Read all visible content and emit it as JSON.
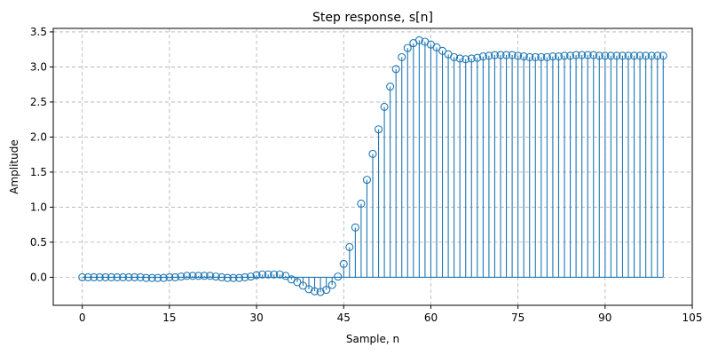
{
  "chart_data": {
    "type": "stem",
    "title": "Step response, s[n]",
    "xlabel": "Sample, n",
    "ylabel": "Amplitude",
    "xlim": [
      -5,
      105
    ],
    "ylim": [
      -0.4,
      3.55
    ],
    "xticks": [
      0,
      15,
      30,
      45,
      60,
      75,
      90,
      105
    ],
    "yticks": [
      0.0,
      0.5,
      1.0,
      1.5,
      2.0,
      2.5,
      3.0,
      3.5
    ],
    "xtick_labels": [
      "0",
      "15",
      "30",
      "45",
      "60",
      "75",
      "90",
      "105"
    ],
    "ytick_labels": [
      "0.0",
      "0.5",
      "1.0",
      "1.5",
      "2.0",
      "2.5",
      "3.0",
      "3.5"
    ],
    "grid": true,
    "grid_style": "dashed",
    "color": "#1f77b4",
    "baseline": 0,
    "x": [
      0,
      1,
      2,
      3,
      4,
      5,
      6,
      7,
      8,
      9,
      10,
      11,
      12,
      13,
      14,
      15,
      16,
      17,
      18,
      19,
      20,
      21,
      22,
      23,
      24,
      25,
      26,
      27,
      28,
      29,
      30,
      31,
      32,
      33,
      34,
      35,
      36,
      37,
      38,
      39,
      40,
      41,
      42,
      43,
      44,
      45,
      46,
      47,
      48,
      49,
      50,
      51,
      52,
      53,
      54,
      55,
      56,
      57,
      58,
      59,
      60,
      61,
      62,
      63,
      64,
      65,
      66,
      67,
      68,
      69,
      70,
      71,
      72,
      73,
      74,
      75,
      76,
      77,
      78,
      79,
      80,
      81,
      82,
      83,
      84,
      85,
      86,
      87,
      88,
      89,
      90,
      91,
      92,
      93,
      94,
      95,
      96,
      97,
      98,
      99,
      100
    ],
    "values": [
      0.0,
      0.0,
      0.0,
      0.0,
      0.0,
      0.0,
      0.0,
      0.0,
      0.0,
      0.0,
      0.0,
      -0.01,
      -0.01,
      -0.01,
      -0.01,
      0.0,
      0.0,
      0.01,
      0.02,
      0.02,
      0.02,
      0.02,
      0.02,
      0.01,
      0.0,
      -0.01,
      -0.01,
      -0.01,
      0.0,
      0.01,
      0.03,
      0.04,
      0.04,
      0.04,
      0.04,
      0.02,
      -0.03,
      -0.07,
      -0.12,
      -0.17,
      -0.2,
      -0.21,
      -0.18,
      -0.11,
      0.01,
      0.19,
      0.43,
      0.71,
      1.05,
      1.39,
      1.76,
      2.11,
      2.43,
      2.72,
      2.97,
      3.14,
      3.27,
      3.34,
      3.38,
      3.36,
      3.32,
      3.28,
      3.23,
      3.18,
      3.14,
      3.12,
      3.11,
      3.12,
      3.13,
      3.15,
      3.16,
      3.17,
      3.17,
      3.17,
      3.17,
      3.16,
      3.15,
      3.14,
      3.14,
      3.14,
      3.14,
      3.15,
      3.15,
      3.16,
      3.16,
      3.17,
      3.17,
      3.17,
      3.17,
      3.16,
      3.16,
      3.16,
      3.16,
      3.16,
      3.16,
      3.16,
      3.16,
      3.16,
      3.16,
      3.16,
      3.16
    ]
  }
}
